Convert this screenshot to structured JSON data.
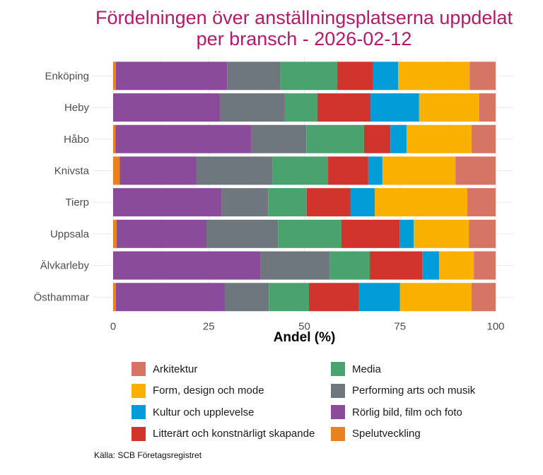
{
  "chart_data": {
    "type": "bar",
    "orientation": "horizontal",
    "stacked": true,
    "title": "Fördelningen över anställningsplatserna uppdelat\nper bransch - 2026-02-12",
    "title_lines": [
      "Fördelningen över anställningsplatserna uppdelat",
      "per bransch - 2026-02-12"
    ],
    "xlabel": "Andel (%)",
    "ylabel": "",
    "xlim": [
      0,
      100
    ],
    "xticks": [
      0,
      25,
      50,
      75,
      100
    ],
    "xtick_labels": [
      "0",
      "25",
      "50",
      "75",
      "100"
    ],
    "grid": true,
    "legend_position": "bottom",
    "categories": [
      "Enköping",
      "Heby",
      "Håbo",
      "Knivsta",
      "Tierp",
      "Uppsala",
      "Älvkarleby",
      "Östhammar"
    ],
    "series": [
      {
        "name": "Spelutveckling",
        "color": "#e8821e",
        "values": [
          0.7,
          0,
          0.6,
          1.7,
          0,
          0.9,
          0,
          0.7
        ]
      },
      {
        "name": "Rörlig bild, film och foto",
        "color": "#8a4b9b",
        "values": [
          29.1,
          27.9,
          35.6,
          20.1,
          28.3,
          23.5,
          38.6,
          28.5
        ]
      },
      {
        "name": "Performing arts och musik",
        "color": "#6f777e",
        "values": [
          13.9,
          17.0,
          14.3,
          19.8,
          12.2,
          18.7,
          18.1,
          11.5
        ]
      },
      {
        "name": "Media",
        "color": "#4aa36f",
        "values": [
          14.9,
          8.5,
          15.1,
          14.6,
          10.1,
          16.6,
          10.4,
          10.5
        ]
      },
      {
        "name": "Litterärt och konstnärligt skapande",
        "color": "#d1342d",
        "values": [
          9.4,
          13.9,
          6.9,
          10.5,
          11.5,
          15.2,
          13.7,
          13.1
        ]
      },
      {
        "name": "Kultur och upplevelse",
        "color": "#029cd8",
        "values": [
          6.5,
          12.7,
          4.2,
          3.7,
          6.3,
          3.7,
          4.4,
          10.7
        ]
      },
      {
        "name": "Form, design och mode",
        "color": "#f9b000",
        "values": [
          18.7,
          15.7,
          17.0,
          19.1,
          24.2,
          14.4,
          9.1,
          18.7
        ]
      },
      {
        "name": "Arkitektur",
        "color": "#d67566",
        "values": [
          6.8,
          4.3,
          6.3,
          10.5,
          7.4,
          7.0,
          5.7,
          6.3
        ]
      }
    ],
    "legend_order": [
      "Arkitektur",
      "Form, design och mode",
      "Kultur och upplevelse",
      "Litterärt och konstnärligt skapande",
      "Media",
      "Performing arts och musik",
      "Rörlig bild, film och foto",
      "Spelutveckling"
    ],
    "source": "Källa: SCB Företagsregistret"
  },
  "colors": {
    "title": "#b5196a"
  }
}
